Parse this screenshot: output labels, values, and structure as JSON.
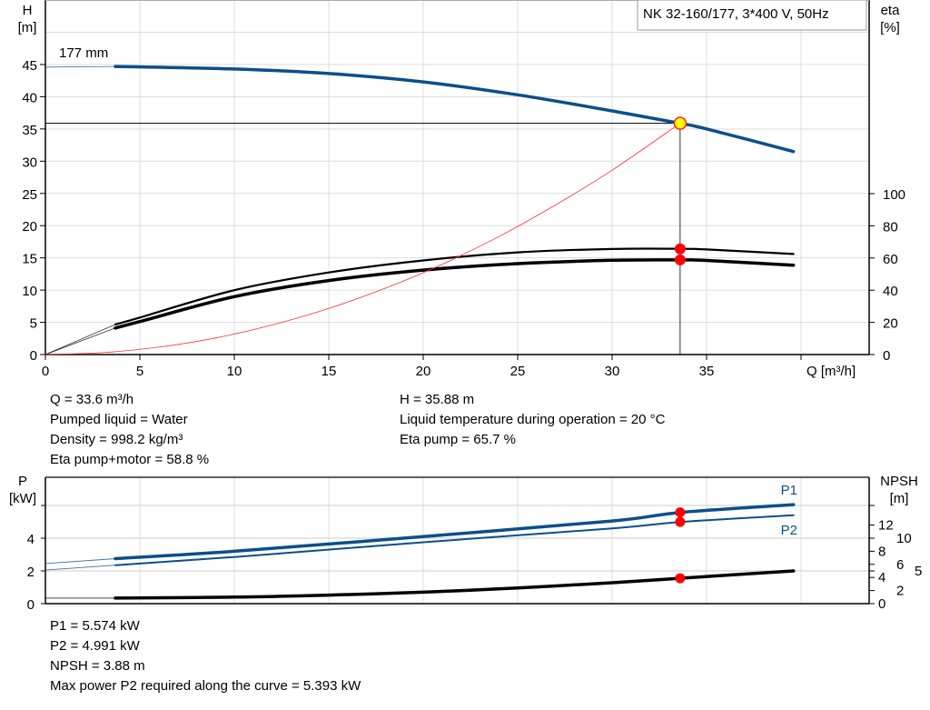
{
  "chart_data": [
    {
      "type": "line",
      "title": "NK 32-160/177, 3*400 V, 50Hz",
      "xlabel": "Q [m³/h]",
      "ylabel": "H\n[m]",
      "ylabel_lines": [
        "H",
        "[m]"
      ],
      "y2label_lines": [
        "eta",
        "[%]"
      ],
      "xlim": [
        0,
        42
      ],
      "ylim": [
        0,
        50
      ],
      "y2lim": [
        0,
        100
      ],
      "xticks": [
        0,
        5,
        10,
        15,
        20,
        25,
        30,
        35
      ],
      "yticks": [
        0,
        5,
        10,
        15,
        20,
        25,
        30,
        35,
        40,
        45
      ],
      "y2ticks": [
        0,
        20,
        40,
        60,
        80,
        100
      ],
      "grid": true,
      "curve_label": "177 mm",
      "series": [
        {
          "key": "H",
          "axis": "H",
          "color": "#0b4f8a",
          "x": [
            3.7,
            10,
            15,
            20,
            25,
            30,
            33.6,
            35,
            39.6
          ],
          "y": [
            44.7,
            44.3,
            43.6,
            42.3,
            40.3,
            37.8,
            35.88,
            35.0,
            31.5
          ],
          "extension": {
            "x": [
              0,
              3.7
            ],
            "y": [
              44.6,
              44.7
            ]
          }
        },
        {
          "key": "eta_pump",
          "axis": "eta",
          "color": "#000000",
          "x": [
            3.7,
            5,
            10,
            15,
            20,
            25,
            30,
            33.6,
            35,
            39.6
          ],
          "y": [
            18.7,
            23,
            40,
            51,
            58.5,
            63.5,
            65.6,
            65.7,
            65.3,
            62.5
          ],
          "extension": {
            "x": [
              0,
              3.7
            ],
            "y": [
              0,
              18.7
            ]
          }
        },
        {
          "key": "eta_pump_motor",
          "axis": "eta",
          "color": "#000000",
          "x": [
            3.7,
            5,
            10,
            15,
            20,
            25,
            30,
            33.6,
            35,
            39.6
          ],
          "y": [
            16.5,
            20.5,
            36,
            46,
            52.5,
            56.5,
            58.6,
            58.8,
            58.5,
            55.5
          ],
          "extension": {
            "x": [
              0,
              3.7
            ],
            "y": [
              0,
              16.5
            ]
          }
        },
        {
          "key": "system_curve",
          "axis": "H",
          "color": "#ff3030",
          "x": [
            0,
            3,
            6,
            9,
            12,
            15,
            18,
            21,
            24,
            27,
            30,
            33.6
          ],
          "y": [
            0,
            0.29,
            1.14,
            2.57,
            4.58,
            7.15,
            10.3,
            14.0,
            18.3,
            23.2,
            28.6,
            35.88
          ]
        }
      ],
      "operating_point": {
        "Q": 33.6,
        "H": 35.88,
        "eta_pump": 65.7,
        "eta_pump_motor": 58.8
      }
    },
    {
      "type": "line",
      "ylabel_lines": [
        "P",
        "[kW]"
      ],
      "y2label_lines": [
        "NPSH",
        "[m]"
      ],
      "xlim": [
        0,
        42
      ],
      "ylim": [
        0,
        6.5
      ],
      "y2lim": [
        0,
        15
      ],
      "yticks": [
        0,
        2,
        4,
        6
      ],
      "yticklabels": [
        "0",
        "2",
        "4",
        ""
      ],
      "y2ticks": [
        0,
        2,
        4,
        5,
        6,
        8,
        10,
        12,
        15
      ],
      "y2ticklabels": [
        "0",
        "2",
        "4",
        "5",
        "6",
        "8",
        "10",
        "12",
        ""
      ],
      "grid": true,
      "series": [
        {
          "key": "P1",
          "name": "P1",
          "axis": "P",
          "color": "#0b4f8a",
          "x": [
            3.7,
            10,
            20,
            30,
            33.6,
            39.6
          ],
          "y": [
            2.75,
            3.2,
            4.1,
            5.05,
            5.574,
            6.05
          ],
          "extension": {
            "x": [
              0,
              3.7
            ],
            "y": [
              2.45,
              2.75
            ]
          }
        },
        {
          "key": "P2",
          "name": "P2",
          "axis": "P",
          "color": "#0b4f8a",
          "x": [
            3.7,
            10,
            20,
            30,
            33.6,
            39.6
          ],
          "y": [
            2.35,
            2.85,
            3.75,
            4.6,
            4.991,
            5.4
          ],
          "extension": {
            "x": [
              0,
              3.7
            ],
            "y": [
              2.05,
              2.35
            ]
          }
        },
        {
          "key": "NPSH",
          "axis": "NPSH",
          "color": "#000000",
          "x": [
            3.7,
            10,
            15,
            20,
            25,
            30,
            33.6,
            39.6
          ],
          "y": [
            0.85,
            1.0,
            1.3,
            1.75,
            2.4,
            3.2,
            3.88,
            5.0
          ],
          "extension": {
            "x": [
              0,
              3.7
            ],
            "y": [
              0.85,
              0.85
            ]
          }
        }
      ],
      "operating_point": {
        "Q": 33.6,
        "P1": 5.574,
        "P2": 4.991,
        "NPSH": 3.88
      }
    }
  ],
  "readouts_top": {
    "left": [
      "Q = 33.6 m³/h",
      "Pumped liquid = Water",
      "Density = 998.2 kg/m³",
      "Eta pump+motor = 58.8 %"
    ],
    "right": [
      "H = 35.88 m",
      "Liquid temperature during operation = 20 °C",
      "Eta pump = 65.7 %"
    ]
  },
  "readouts_bottom": [
    "P1 = 5.574 kW",
    "P2 = 4.991 kW",
    "NPSH = 3.88 m",
    "Max power P2 required along the curve = 5.393 kW"
  ],
  "colors": {
    "head_curve": "#0b4f8a",
    "system_curve": "#ff3030",
    "duty_point": "#ffff00",
    "marker": "#ff0000",
    "grid": "#dddddd"
  }
}
